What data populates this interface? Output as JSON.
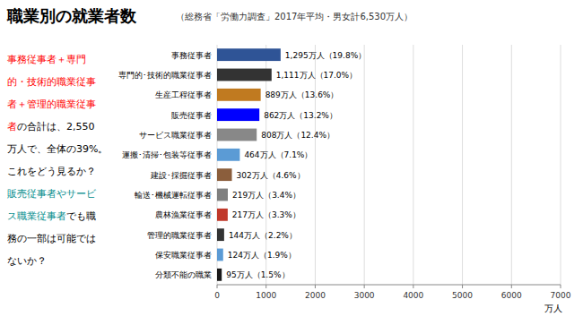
{
  "chart_data": {
    "type": "bar",
    "orientation": "horizontal",
    "title": "職業別の就業者数",
    "subtitle": "（総務省「労働力調査」2017年平均・男女計6,530万人）",
    "categories": [
      "事務従事者",
      "専門的･技術的職業従事者",
      "生産工程従事者",
      "販売従事者",
      "サービス職業従事者",
      "運搬･清掃･包装等従事者",
      "建設･採掘従事者",
      "輸送･機械運転従事者",
      "農林漁業従事者",
      "管理的職業従事者",
      "保安職業従事者",
      "分類不能の職業"
    ],
    "values": [
      1295,
      1111,
      889,
      862,
      808,
      464,
      302,
      219,
      217,
      144,
      124,
      95
    ],
    "value_labels": [
      "1,295万人（19.8%）",
      "1,111万人（17.0%）",
      "889万人（13.6%）",
      "862万人（13.2%）",
      "808万人（12.4%）",
      "464万人（7.1%）",
      "302万人（4.6%）",
      "219万人（3.4%）",
      "217万人（3.3%）",
      "144万人（2.2%）",
      "124万人（1.9%）",
      "95万人（1.5%）"
    ],
    "data_labels": true,
    "colors": [
      "#2F5496",
      "#333333",
      "#C07A20",
      "#0000FF",
      "#888888",
      "#5B9BD5",
      "#8B5E3C",
      "#7F7F7F",
      "#C0392B",
      "#333333",
      "#5B9BD5",
      "#1A1A1A"
    ],
    "xlabel": "万人",
    "xlim": [
      0,
      7000
    ],
    "xticks": [
      0,
      1000,
      2000,
      3000,
      4000,
      5000,
      6000,
      7000
    ],
    "grid": true,
    "annotations": [
      [
        {
          "text": "事務従事者＋専門",
          "color": "red"
        }
      ],
      [
        {
          "text": "的・技術的職業従事",
          "color": "red"
        }
      ],
      [
        {
          "text": "者＋管理的職業従事",
          "color": "red"
        }
      ],
      [
        {
          "text": "者",
          "color": "red"
        },
        {
          "text": "の合計は、2,550",
          "color": "black"
        }
      ],
      [
        {
          "text": "万人で、全体の39%。",
          "color": "black"
        }
      ],
      [
        {
          "text": "これをどう見るか？",
          "color": "black"
        }
      ],
      [
        {
          "text": "販売従事者やサービ",
          "color": "#008B8B"
        }
      ],
      [
        {
          "text": "ス職業従事者",
          "color": "#008B8B"
        },
        {
          "text": "でも職",
          "color": "black"
        }
      ],
      [
        {
          "text": "務の一部は可能では",
          "color": "black"
        }
      ],
      [
        {
          "text": "ないか？",
          "color": "black"
        }
      ]
    ]
  }
}
